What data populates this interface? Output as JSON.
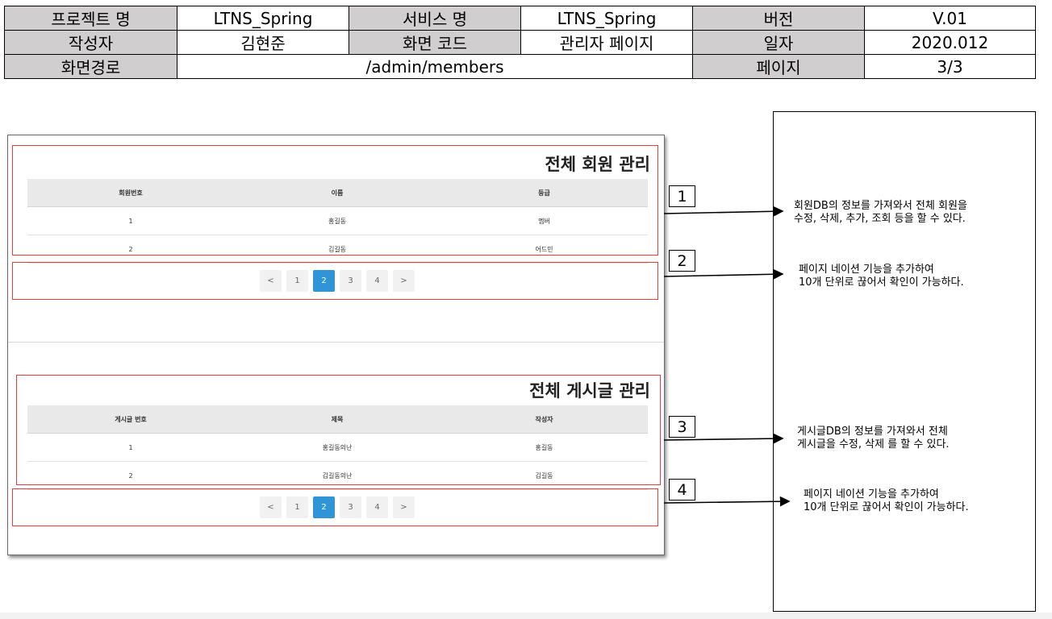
{
  "header": {
    "project_label": "프로젝트 명",
    "project_value": "LTNS_Spring",
    "service_label": "서비스 명",
    "service_value": "LTNS_Spring",
    "version_label": "버전",
    "version_value": "V.01",
    "author_label": "작성자",
    "author_value": "김현준",
    "screen_code_label": "화면 코드",
    "screen_code_value": "관리자 페이지",
    "date_label": "일자",
    "date_value": "2020.012",
    "path_label": "화면경로",
    "path_value": "/admin/members",
    "page_label": "페이지",
    "page_value": "3/3"
  },
  "members": {
    "title": "전체 회원 관리",
    "columns": [
      "회원번호",
      "이름",
      "등급"
    ],
    "rows": [
      [
        "1",
        "홍길동",
        "멤버"
      ],
      [
        "2",
        "김길동",
        "어드민"
      ]
    ]
  },
  "posts": {
    "title": "전체 게시글 관리",
    "columns": [
      "게시글 번호",
      "제목",
      "작성자"
    ],
    "rows": [
      [
        "1",
        "홍길동의난",
        "홍길동"
      ],
      [
        "2",
        "김길동의난",
        "김길동"
      ]
    ]
  },
  "pagination": {
    "prev": "<",
    "pages": [
      "1",
      "2",
      "3",
      "4"
    ],
    "next": ">",
    "active_page": "2"
  },
  "annotations": [
    {
      "number": "1",
      "lines": [
        "회원DB의 정보를 가져와서 전체 회원을",
        "수정, 삭제, 추가, 조회 등을 할 수 있다."
      ]
    },
    {
      "number": "2",
      "lines": [
        "페이지 네이션 기능을 추가하여",
        "10개 단위로 끊어서 확인이 가능하다."
      ]
    },
    {
      "number": "3",
      "lines": [
        "게시글DB의 정보를 가져와서 전체",
        "게시글을 수정, 삭제 를 할 수 있다."
      ]
    },
    {
      "number": "4",
      "lines": [
        "페이지 네이션 기능을 추가하여",
        "10개 단위로 끊어서 확인이 가능하다."
      ]
    }
  ],
  "colors": {
    "label_bg": "#d0cece",
    "highlight_border": "#e33c3c",
    "active_page": "#2f95d6"
  }
}
